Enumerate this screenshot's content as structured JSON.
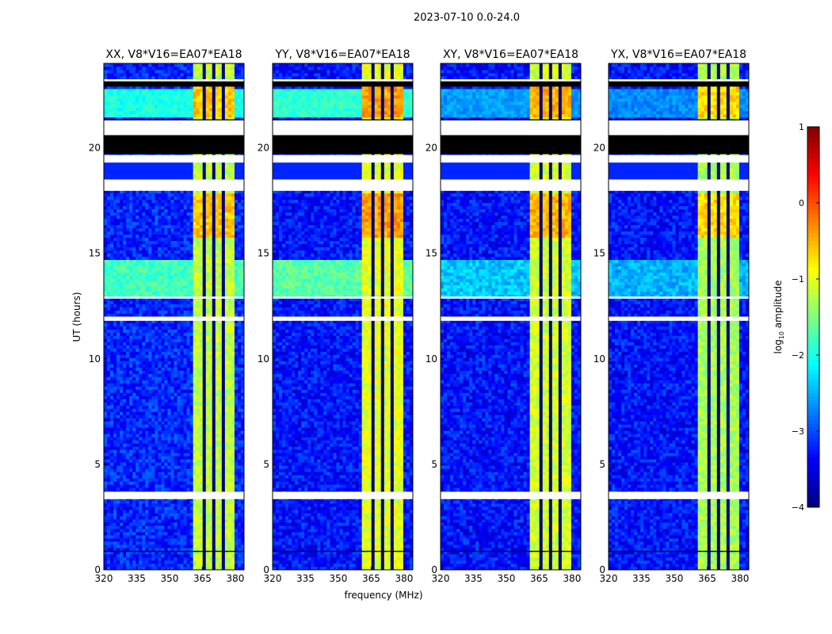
{
  "chart_data": {
    "type": "heatmap",
    "title": "2023-07-10 0.0-24.0",
    "xlabel": "frequency (MHz)",
    "ylabel": "UT (hours)",
    "xlim": [
      320,
      384
    ],
    "ylim": [
      0,
      24
    ],
    "xticks": [
      "320",
      "335",
      "350",
      "365",
      "380"
    ],
    "xtick_values": [
      320,
      335,
      350,
      365,
      380
    ],
    "yticks": [
      "0",
      "5",
      "10",
      "15",
      "20"
    ],
    "ytick_values": [
      0,
      5,
      10,
      15,
      20
    ],
    "colormap": "jet",
    "colorbar": {
      "label_main": "log",
      "label_sub": "10",
      "label_rest": " amplitude",
      "range": [
        -4,
        1
      ],
      "ticks": [
        "1",
        "0",
        "−1",
        "−2",
        "−3",
        "−4"
      ],
      "tick_values": [
        1,
        0,
        -1,
        -2,
        -3,
        -4
      ]
    },
    "band": {
      "start_mhz": 361,
      "end_mhz": 380,
      "gaps_mhz": [
        366,
        370.5,
        375
      ]
    },
    "flagged_hours": [
      [
        3.35,
        3.7
      ],
      [
        11.8,
        12.0
      ],
      [
        12.85,
        12.95
      ],
      [
        17.96,
        18.5
      ],
      [
        19.3,
        19.66
      ],
      [
        20.6,
        21.3
      ],
      [
        23.15,
        23.25
      ]
    ],
    "dark_hours": [
      [
        0.85,
        0.9
      ],
      [
        19.7,
        20.6
      ],
      [
        21.25,
        21.35
      ],
      [
        22.9,
        23.15
      ]
    ],
    "panels": [
      {
        "title": "XX, V8*V16=EA07*EA18",
        "base": -3.2,
        "band": -1.2,
        "rfi": -1.8
      },
      {
        "title": "YY, V8*V16=EA07*EA18",
        "base": -3.3,
        "band": -1.0,
        "rfi": -1.7
      },
      {
        "title": "XY, V8*V16=EA07*EA18",
        "base": -3.3,
        "band": -1.1,
        "rfi": -2.4
      },
      {
        "title": "YX, V8*V16=EA07*EA18",
        "base": -3.3,
        "band": -1.3,
        "rfi": -2.5
      }
    ]
  }
}
